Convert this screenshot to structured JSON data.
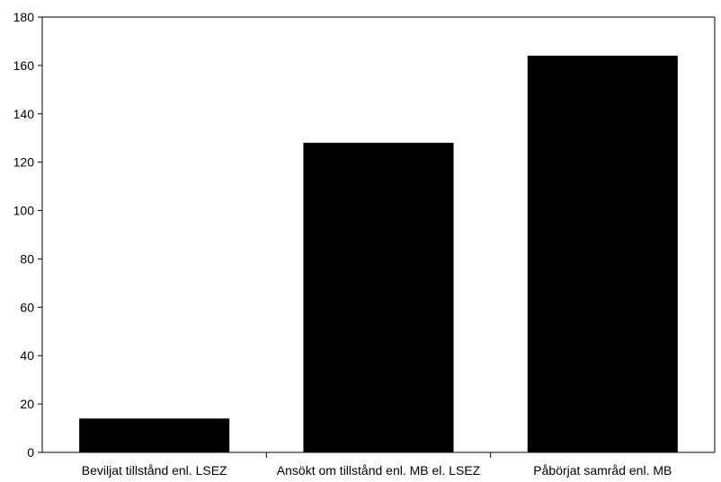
{
  "chart_data": {
    "type": "bar",
    "categories": [
      "Beviljat tillstånd enl. LSEZ",
      "Ansökt om tillstånd enl. MB el. LSEZ",
      "Påbörjat samråd enl. MB"
    ],
    "values": [
      14,
      128,
      164
    ],
    "title": "",
    "xlabel": "",
    "ylabel": "",
    "ylim": [
      0,
      180
    ],
    "yticks": [
      0,
      20,
      40,
      60,
      80,
      100,
      120,
      140,
      160,
      180
    ],
    "grid": false,
    "legend": "none",
    "bar_color": "#000000"
  }
}
